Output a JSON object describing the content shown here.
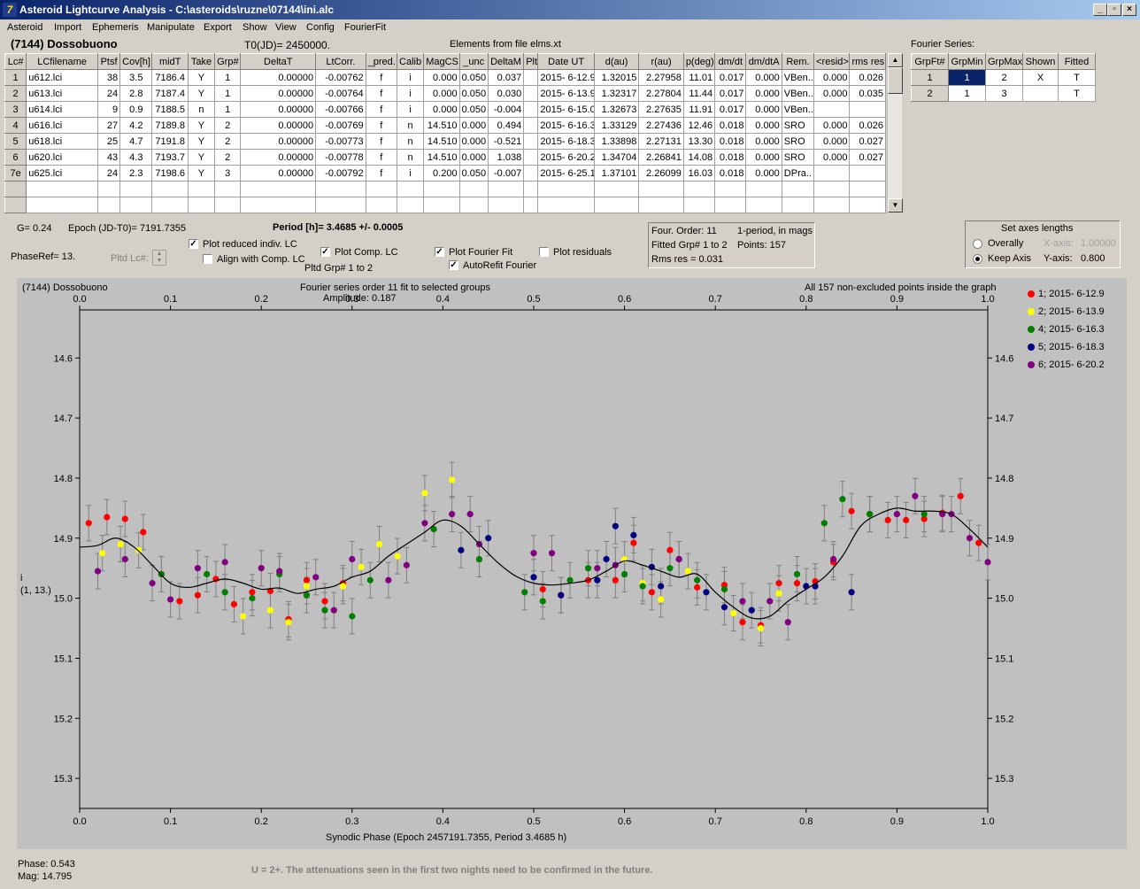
{
  "window": {
    "title": "Asteroid Lightcurve Analysis - C:\\asteroids\\ruzne\\07144\\ini.alc",
    "icon": "7"
  },
  "menu": [
    "Asteroid",
    "Import",
    "Ephemeris",
    "Manipulate",
    "Export",
    "Show",
    "View",
    "Config",
    "FourierFit"
  ],
  "header": {
    "asteroid": "(7144) Dossobuono",
    "t0": "T0(JD)= 2450000.",
    "elements": "Elements from file elms.xt"
  },
  "lc_table": {
    "columns": [
      "Lc#",
      "LCfilename",
      "Ptsf",
      "Cov[h]",
      "midT",
      "Take",
      "Grp#",
      "DeltaT",
      "LtCorr.",
      "_pred.",
      "Calib",
      "MagCS",
      "_unc",
      "DeltaM",
      "Plt",
      "Date UT",
      "d(au)",
      "r(au)",
      "p(deg)",
      "dm/dt",
      "dm/dtA",
      "Rem.",
      "<resid>",
      "rms res"
    ],
    "rows": [
      [
        "1",
        "u612.lci",
        "38",
        "3.5",
        "7186.4",
        "Y",
        "1",
        "0.00000",
        "-0.00762",
        "f",
        "i",
        "0.000",
        "0.050",
        "0.037",
        "",
        "2015- 6-12.9",
        "1.32015",
        "2.27958",
        "11.01",
        "0.017",
        "0.000",
        "VBen..",
        "0.000",
        "0.026"
      ],
      [
        "2",
        "u613.lci",
        "24",
        "2.8",
        "7187.4",
        "Y",
        "1",
        "0.00000",
        "-0.00764",
        "f",
        "i",
        "0.000",
        "0.050",
        "0.030",
        "",
        "2015- 6-13.9",
        "1.32317",
        "2.27804",
        "11.44",
        "0.017",
        "0.000",
        "VBen..",
        "0.000",
        "0.035"
      ],
      [
        "3",
        "u614.lci",
        "9",
        "0.9",
        "7188.5",
        "n",
        "1",
        "0.00000",
        "-0.00766",
        "f",
        "i",
        "0.000",
        "0.050",
        "-0.004",
        "",
        "2015- 6-15.0",
        "1.32673",
        "2.27635",
        "11.91",
        "0.017",
        "0.000",
        "VBen..",
        "",
        ""
      ],
      [
        "4",
        "u616.lci",
        "27",
        "4.2",
        "7189.8",
        "Y",
        "2",
        "0.00000",
        "-0.00769",
        "f",
        "n",
        "14.510",
        "0.000",
        "0.494",
        "",
        "2015- 6-16.3",
        "1.33129",
        "2.27436",
        "12.46",
        "0.018",
        "0.000",
        "SRO",
        "0.000",
        "0.026"
      ],
      [
        "5",
        "u618.lci",
        "25",
        "4.7",
        "7191.8",
        "Y",
        "2",
        "0.00000",
        "-0.00773",
        "f",
        "n",
        "14.510",
        "0.000",
        "-0.521",
        "",
        "2015- 6-18.3",
        "1.33898",
        "2.27131",
        "13.30",
        "0.018",
        "0.000",
        "SRO",
        "0.000",
        "0.027"
      ],
      [
        "6",
        "u620.lci",
        "43",
        "4.3",
        "7193.7",
        "Y",
        "2",
        "0.00000",
        "-0.00778",
        "f",
        "n",
        "14.510",
        "0.000",
        "1.038",
        "",
        "2015- 6-20.2",
        "1.34704",
        "2.26841",
        "14.08",
        "0.018",
        "0.000",
        "SRO",
        "0.000",
        "0.027"
      ],
      [
        "7e",
        "u625.lci",
        "24",
        "2.3",
        "7198.6",
        "Y",
        "3",
        "0.00000",
        "-0.00792",
        "f",
        "i",
        "0.200",
        "0.050",
        "-0.007",
        "",
        "2015- 6-25.1",
        "1.37101",
        "2.26099",
        "16.03",
        "0.018",
        "0.000",
        "DPra..",
        "",
        ""
      ]
    ]
  },
  "fourier_series": {
    "label": "Fourier Series:",
    "columns": [
      "GrpFt#",
      "GrpMin",
      "GrpMax",
      "Shown",
      "Fitted"
    ],
    "rows": [
      [
        "1",
        "1",
        "2",
        "X",
        "T"
      ],
      [
        "2",
        "1",
        "3",
        "",
        "T"
      ]
    ]
  },
  "info": {
    "g": "G= 0.24",
    "epoch": "Epoch (JD-T0)= 7191.7355",
    "period": "Period [h]= 3.4685 +/- 0.0005",
    "phaseref": "PhaseRef= 13.",
    "pltd_lc": "Pltd Lc#:",
    "pltd_grp": "Pltd Grp#  1   to   2"
  },
  "options": {
    "plot_reduced": "Plot reduced indiv. LC",
    "align_comp": "Align with Comp. LC",
    "plot_comp": "Plot Comp. LC",
    "plot_fourier": "Plot Fourier Fit",
    "autorefit": "AutoRefit Fourier",
    "plot_residuals": "Plot residuals"
  },
  "fit_summary": {
    "order": "Four. Order: 11",
    "mode": "1-period, in mags",
    "fitted": "Fitted Grp# 1 to 2",
    "points": "Points: 157",
    "rms": "Rms res     = 0.031"
  },
  "axes_box": {
    "title": "Set axes lengths",
    "overally": "Overally",
    "keep": "Keep Axis",
    "xaxis_label": "X-axis:",
    "xaxis_val": "1.00000",
    "yaxis_label": "Y-axis:",
    "yaxis_val": "0.800"
  },
  "plot": {
    "name": "(7144) Dossobuono",
    "subtitle": "Fourier series order 11 fit to selected groups",
    "amplitude": "Amplitude: 0.187",
    "note": "All 157 non-excluded points inside the graph",
    "ylabel1": "i",
    "ylabel2": "(1, 13.)",
    "xlabel": "Synodic Phase (Epoch 2457191.7355, Period 3.4685 h)"
  },
  "legend": [
    {
      "label": "1; 2015- 6-12.9",
      "color": "#ff0000"
    },
    {
      "label": "2; 2015- 6-13.9",
      "color": "#ffff00"
    },
    {
      "label": "4; 2015- 6-16.3",
      "color": "#008000"
    },
    {
      "label": "5; 2015- 6-18.3",
      "color": "#000080"
    },
    {
      "label": "6; 2015- 6-20.2",
      "color": "#800080"
    }
  ],
  "status": {
    "phase": "Phase:  0.543",
    "mag": "Mag:    14.795",
    "comment": "U = 2+.  The attenuations seen in the first two nights need to be confirmed in the future."
  },
  "chart_data": {
    "type": "scatter",
    "xlim": [
      0.0,
      1.0
    ],
    "ylim": [
      15.35,
      14.52
    ],
    "xticks": [
      0.0,
      0.1,
      0.2,
      0.3,
      0.4,
      0.5,
      0.6,
      0.7,
      0.8,
      0.9,
      1.0
    ],
    "xticklabels": [
      "0.0",
      "0.1",
      "0.2",
      "0.3",
      "0.4",
      "0.5",
      "0.6",
      "0.7",
      "0.8",
      "0.9",
      "1.0"
    ],
    "yticks": [
      14.6,
      14.7,
      14.8,
      14.9,
      15.0,
      15.1,
      15.2,
      15.3
    ],
    "yticklabels": [
      "14.6",
      "14.7",
      "14.8",
      "14.9",
      "15.0",
      "15.1",
      "15.2",
      "15.3"
    ],
    "fourier_fit": {
      "x": [
        0.0,
        0.02,
        0.04,
        0.06,
        0.08,
        0.1,
        0.12,
        0.14,
        0.16,
        0.18,
        0.2,
        0.22,
        0.24,
        0.26,
        0.28,
        0.3,
        0.32,
        0.34,
        0.36,
        0.38,
        0.4,
        0.42,
        0.44,
        0.46,
        0.48,
        0.5,
        0.52,
        0.54,
        0.56,
        0.58,
        0.6,
        0.62,
        0.64,
        0.66,
        0.68,
        0.7,
        0.72,
        0.74,
        0.76,
        0.78,
        0.8,
        0.82,
        0.84,
        0.86,
        0.88,
        0.9,
        0.92,
        0.94,
        0.96,
        0.98,
        1.0
      ],
      "y": [
        14.915,
        14.912,
        14.9,
        14.915,
        14.945,
        14.975,
        14.982,
        14.975,
        14.968,
        14.975,
        14.985,
        14.983,
        14.992,
        14.985,
        14.98,
        14.965,
        14.955,
        14.93,
        14.91,
        14.89,
        14.87,
        14.88,
        14.91,
        14.94,
        14.963,
        14.975,
        14.978,
        14.975,
        14.97,
        14.955,
        14.938,
        14.945,
        14.955,
        14.965,
        14.96,
        14.99,
        15.015,
        15.033,
        15.03,
        15.005,
        14.985,
        14.965,
        14.93,
        14.88,
        14.86,
        14.85,
        14.855,
        14.855,
        14.86,
        14.885,
        14.915
      ]
    },
    "series": [
      {
        "name": "1; 2015- 6-12.9",
        "color": "#ff0000",
        "x": [
          0.01,
          0.03,
          0.05,
          0.07,
          0.09,
          0.11,
          0.13,
          0.15,
          0.17,
          0.19,
          0.21,
          0.23,
          0.25,
          0.27,
          0.29,
          0.51,
          0.53,
          0.56,
          0.59,
          0.61,
          0.63,
          0.65,
          0.68,
          0.71,
          0.73,
          0.75,
          0.77,
          0.79,
          0.81,
          0.83,
          0.85,
          0.87,
          0.89,
          0.91,
          0.93,
          0.95,
          0.97,
          0.99
        ],
        "y": [
          14.875,
          14.865,
          14.868,
          14.89,
          14.96,
          15.005,
          14.995,
          14.968,
          15.01,
          14.99,
          14.988,
          15.035,
          14.97,
          15.005,
          14.975,
          14.985,
          14.995,
          14.97,
          14.97,
          14.908,
          14.99,
          14.92,
          14.982,
          14.978,
          15.04,
          15.045,
          14.975,
          14.975,
          14.972,
          14.94,
          14.855,
          14.86,
          14.87,
          14.87,
          14.868,
          14.858,
          14.83,
          14.908
        ]
      },
      {
        "name": "2; 2015- 6-13.9",
        "color": "#ffff00",
        "x": [
          0.025,
          0.045,
          0.065,
          0.18,
          0.21,
          0.23,
          0.25,
          0.29,
          0.31,
          0.33,
          0.35,
          0.38,
          0.41,
          0.6,
          0.62,
          0.64,
          0.67,
          0.72,
          0.75,
          0.77
        ],
        "y": [
          14.925,
          14.91,
          14.92,
          15.03,
          15.02,
          15.04,
          14.98,
          14.98,
          14.948,
          14.91,
          14.93,
          14.825,
          14.803,
          14.935,
          14.975,
          15.002,
          14.955,
          15.025,
          15.05,
          14.992
        ]
      },
      {
        "name": "4; 2015- 6-16.3",
        "color": "#008000",
        "x": [
          0.09,
          0.14,
          0.16,
          0.19,
          0.22,
          0.25,
          0.27,
          0.3,
          0.32,
          0.39,
          0.44,
          0.49,
          0.51,
          0.54,
          0.56,
          0.6,
          0.62,
          0.65,
          0.68,
          0.71,
          0.79,
          0.82,
          0.84,
          0.87,
          0.93
        ],
        "y": [
          14.96,
          14.96,
          14.99,
          15.0,
          14.96,
          14.995,
          15.02,
          15.03,
          14.97,
          14.885,
          14.935,
          14.99,
          15.005,
          14.97,
          14.95,
          14.96,
          14.98,
          14.95,
          14.97,
          14.985,
          14.96,
          14.875,
          14.835,
          14.86,
          14.86
        ]
      },
      {
        "name": "5; 2015- 6-18.3",
        "color": "#000080",
        "x": [
          0.42,
          0.45,
          0.5,
          0.53,
          0.57,
          0.58,
          0.59,
          0.61,
          0.63,
          0.64,
          0.66,
          0.69,
          0.71,
          0.74,
          0.8,
          0.81,
          0.85
        ],
        "y": [
          14.92,
          14.9,
          14.965,
          14.995,
          14.97,
          14.935,
          14.88,
          14.895,
          14.948,
          14.98,
          14.935,
          14.99,
          15.015,
          15.02,
          14.98,
          14.98,
          14.99
        ]
      },
      {
        "name": "6; 2015- 6-20.2",
        "color": "#800080",
        "x": [
          0.02,
          0.05,
          0.08,
          0.1,
          0.13,
          0.16,
          0.2,
          0.22,
          0.26,
          0.28,
          0.3,
          0.34,
          0.36,
          0.38,
          0.41,
          0.43,
          0.44,
          0.5,
          0.52,
          0.57,
          0.59,
          0.66,
          0.73,
          0.76,
          0.78,
          0.83,
          0.9,
          0.92,
          0.95,
          0.96,
          0.98,
          1.0
        ],
        "y": [
          14.955,
          14.935,
          14.975,
          15.002,
          14.95,
          14.94,
          14.95,
          14.955,
          14.965,
          15.02,
          14.935,
          14.97,
          14.945,
          14.875,
          14.86,
          14.86,
          14.91,
          14.925,
          14.925,
          14.95,
          14.945,
          14.935,
          15.005,
          15.005,
          15.04,
          14.935,
          14.86,
          14.83,
          14.86,
          14.86,
          14.9,
          14.94
        ]
      }
    ]
  }
}
